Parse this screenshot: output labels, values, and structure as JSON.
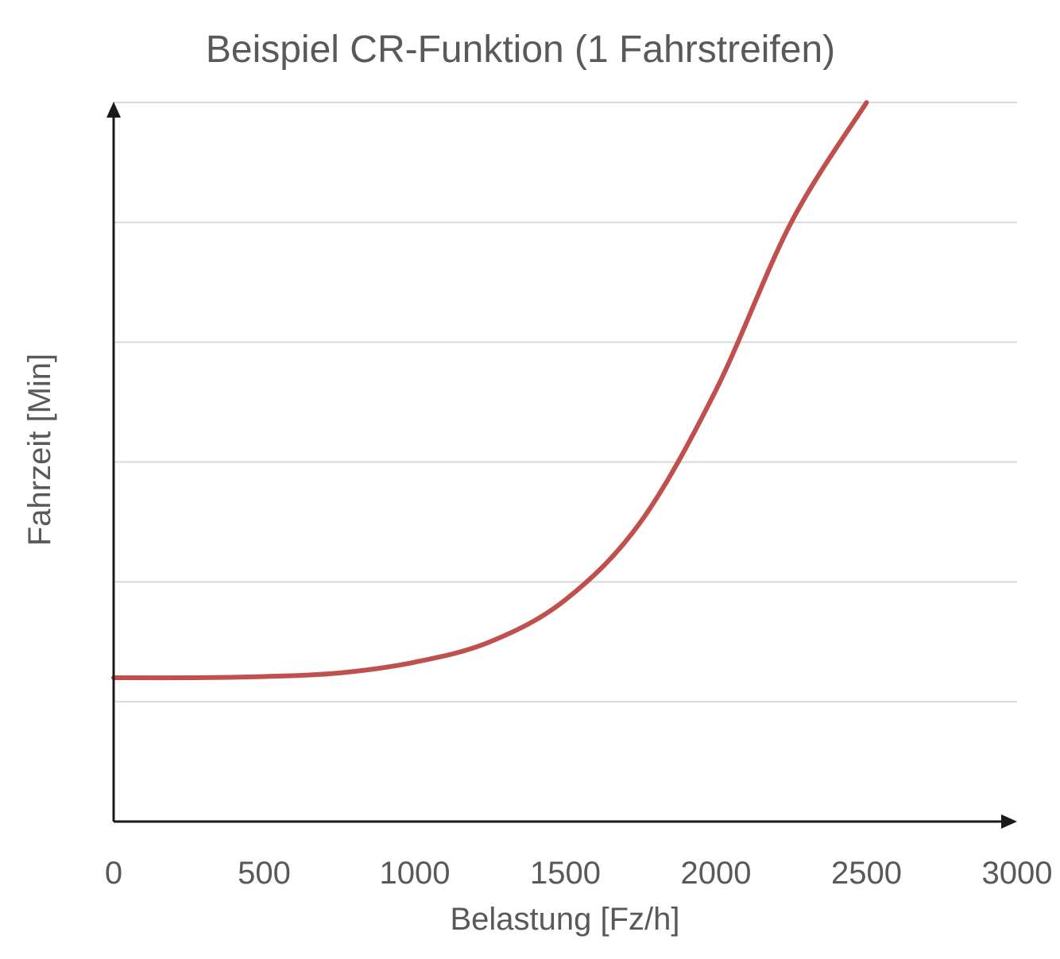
{
  "chart_data": {
    "type": "line",
    "title": "Beispiel CR-Funktion (1 Fahrstreifen)",
    "xlabel": "Belastung [Fz/h]",
    "ylabel": "Fahrzeit [Min]",
    "x_ticks": [
      "0",
      "500",
      "1000",
      "1500",
      "2000",
      "2500",
      "3000"
    ],
    "xlim": [
      0,
      3000
    ],
    "ylim": [
      0,
      6
    ],
    "grid": true,
    "y_tick_labels_shown": false,
    "colors": {
      "series": "#c0504d",
      "grid": "#d9d9d9",
      "axis": "#1a1a1a",
      "text": "#595959"
    },
    "series": [
      {
        "x": [
          0,
          250,
          500,
          750,
          1000,
          1250,
          1500,
          1750,
          2000,
          2250,
          2500
        ],
        "y": [
          1.2,
          1.2,
          1.21,
          1.24,
          1.33,
          1.5,
          1.85,
          2.5,
          3.6,
          5.0,
          6.0
        ]
      }
    ]
  }
}
